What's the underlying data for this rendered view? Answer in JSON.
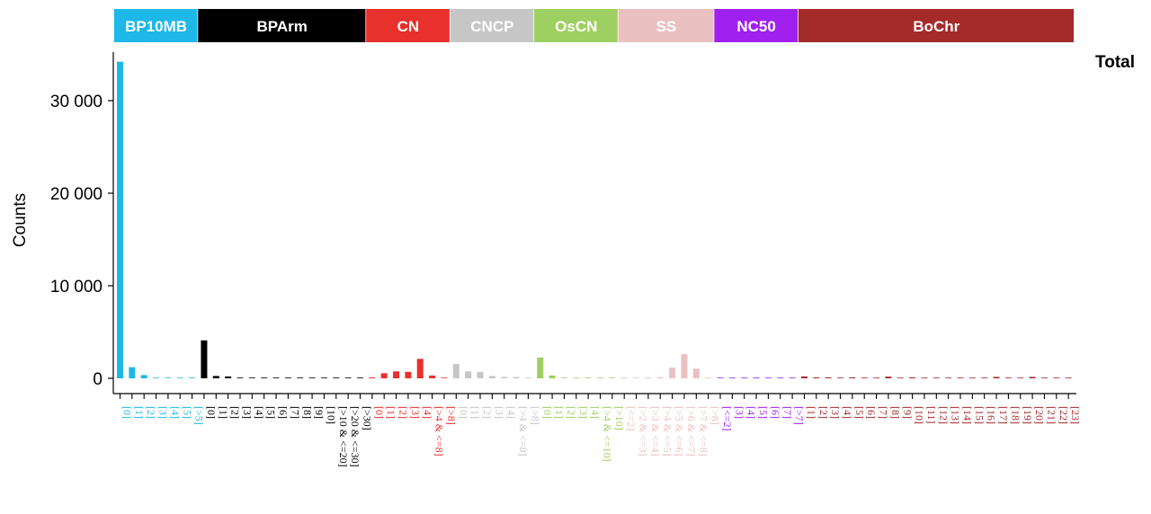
{
  "chart_data": {
    "type": "bar",
    "panel_title": "Total",
    "ylabel": "Counts",
    "xlabel": "",
    "ylim": [
      0,
      35500
    ],
    "yticks": [
      {
        "value": 0,
        "label": "0"
      },
      {
        "value": 10000,
        "label": "10 000"
      },
      {
        "value": 20000,
        "label": "20 000"
      },
      {
        "value": 30000,
        "label": "30 000"
      }
    ],
    "grid": false,
    "legend": "none",
    "groups": [
      {
        "name": "BP10MB",
        "color": "#1DB8E8",
        "categories": [
          "[0]",
          "[1]",
          "[2]",
          "[3]",
          "[4]",
          "[5]",
          "[>5]"
        ],
        "values": [
          34200,
          1200,
          350,
          30,
          20,
          10,
          10
        ]
      },
      {
        "name": "BPArm",
        "color": "#000000",
        "categories": [
          "[0]",
          "[1]",
          "[2]",
          "[3]",
          "[4]",
          "[5]",
          "[6]",
          "[7]",
          "[8]",
          "[9]",
          "[10]",
          "[>10 & <=20]",
          "[>20 & <=30]",
          "[>30]"
        ],
        "values": [
          4100,
          250,
          200,
          40,
          30,
          20,
          15,
          10,
          10,
          10,
          10,
          20,
          10,
          10
        ]
      },
      {
        "name": "CN",
        "color": "#E8302C",
        "categories": [
          "[0]",
          "[1]",
          "[2]",
          "[3]",
          "[4]",
          "[>4 & <=8]",
          "[>8]"
        ],
        "values": [
          100,
          550,
          750,
          700,
          2100,
          300,
          10
        ]
      },
      {
        "name": "CNCP",
        "color": "#C6C6C6",
        "categories": [
          "[0]",
          "[1]",
          "[2]",
          "[3]",
          "[4]",
          "[>4 & <=8]",
          "[>8]"
        ],
        "values": [
          1550,
          750,
          700,
          250,
          150,
          150,
          10
        ]
      },
      {
        "name": "OsCN",
        "color": "#9DD061",
        "categories": [
          "[0]",
          "[1]",
          "[2]",
          "[3]",
          "[4]",
          "[>4 & <=10]",
          "[>10]"
        ],
        "values": [
          2250,
          300,
          20,
          10,
          10,
          10,
          10
        ]
      },
      {
        "name": "SS",
        "color": "#EAC1C0",
        "categories": [
          "[<=2]",
          "[>2 & <=3]",
          "[>3 & <=4]",
          "[>4 & <=5]",
          "[>5 & <=6]",
          "[>6 & <=7]",
          "[>7 & <=8]",
          "[>8]"
        ],
        "values": [
          10,
          20,
          30,
          120,
          1150,
          2600,
          1050,
          10
        ]
      },
      {
        "name": "NC50",
        "color": "#A020F0",
        "categories": [
          "[<=2]",
          "[3]",
          "[4]",
          "[5]",
          "[6]",
          "[7]",
          "[>7]"
        ],
        "values": [
          10,
          10,
          10,
          10,
          10,
          10,
          10
        ]
      },
      {
        "name": "BoChr",
        "color": "#A52A2A",
        "categories": [
          "[1]",
          "[2]",
          "[3]",
          "[4]",
          "[5]",
          "[6]",
          "[7]",
          "[8]",
          "[9]",
          "[10]",
          "[11]",
          "[12]",
          "[13]",
          "[14]",
          "[15]",
          "[16]",
          "[17]",
          "[18]",
          "[19]",
          "[20]",
          "[21]",
          "[22]",
          "[23]"
        ],
        "values": [
          200,
          100,
          100,
          20,
          100,
          50,
          80,
          180,
          20,
          100,
          50,
          60,
          50,
          20,
          20,
          20,
          150,
          10,
          10,
          150,
          10,
          10,
          10
        ]
      }
    ]
  }
}
